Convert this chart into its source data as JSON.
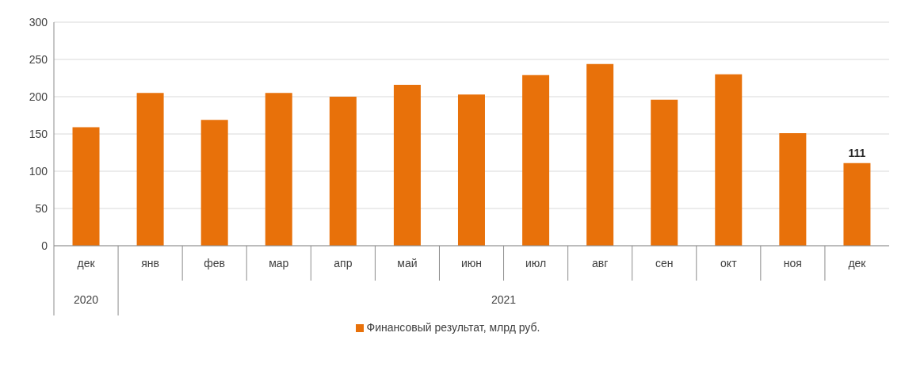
{
  "chart_data": {
    "type": "bar",
    "categories": [
      "дек",
      "янв",
      "фев",
      "мар",
      "апр",
      "май",
      "июн",
      "июл",
      "авг",
      "сен",
      "окт",
      "ноя",
      "дек"
    ],
    "series": [
      {
        "name": "Финансовый результат, млрд руб.",
        "color": "#e8710a",
        "values": [
          159,
          205,
          169,
          205,
          200,
          216,
          203,
          229,
          244,
          196,
          230,
          151,
          111
        ],
        "value_labels": [
          null,
          null,
          null,
          null,
          null,
          null,
          null,
          null,
          null,
          null,
          null,
          null,
          "111"
        ]
      }
    ],
    "ylim": [
      0,
      300
    ],
    "yticks": [
      0,
      50,
      100,
      150,
      200,
      250,
      300
    ],
    "grid": "y",
    "legend": "bottom",
    "annotations": [
      "2020",
      "2021"
    ]
  }
}
